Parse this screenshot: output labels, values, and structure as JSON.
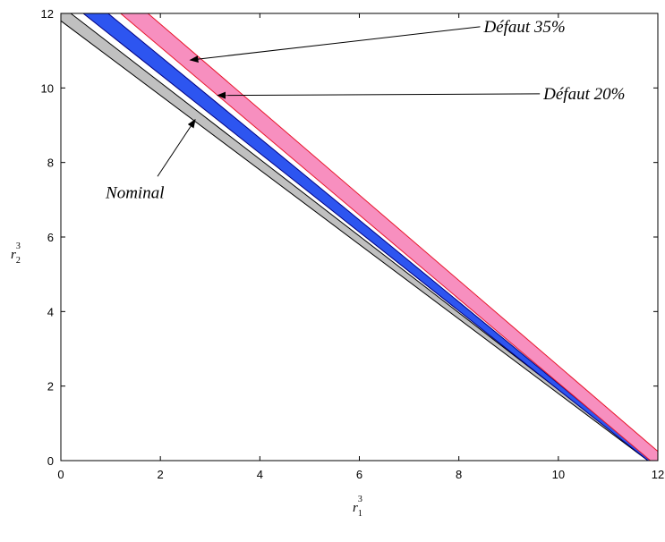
{
  "chart_data": {
    "type": "area",
    "title": "",
    "xlabel": {
      "base": "r",
      "sub": "1",
      "sup": "3"
    },
    "ylabel": {
      "base": "r",
      "sub": "2",
      "sup": "3"
    },
    "xlim": [
      0,
      12
    ],
    "ylim": [
      0,
      12
    ],
    "xticks": [
      "0",
      "2",
      "4",
      "6",
      "8",
      "10",
      "12"
    ],
    "yticks": [
      "0",
      "2",
      "4",
      "6",
      "8",
      "10",
      "12"
    ],
    "grid": false,
    "series": [
      {
        "name": "Nominal",
        "fill": "#c0c0c0",
        "stroke": "#000000",
        "points": [
          [
            0,
            12
          ],
          [
            0.2,
            12
          ],
          [
            11.85,
            0
          ],
          [
            11.8,
            0
          ],
          [
            0,
            11.8
          ]
        ]
      },
      {
        "name": "Défaut 20%",
        "fill": "#2d55f0",
        "stroke": "#000080",
        "points": [
          [
            0.45,
            12
          ],
          [
            0.95,
            12
          ],
          [
            11.88,
            0
          ],
          [
            11.8,
            0
          ]
        ]
      },
      {
        "name": "Défaut 35%",
        "fill": "#f78fbf",
        "stroke": "#e8142a",
        "points": [
          [
            1.2,
            12
          ],
          [
            1.75,
            12
          ],
          [
            12,
            0.25
          ],
          [
            12,
            0
          ],
          [
            11.85,
            0
          ]
        ]
      }
    ],
    "annotations": [
      {
        "text": "Défaut 35%",
        "text_at": [
          8.5,
          11.5
        ],
        "arrow_to": [
          2.6,
          10.75
        ]
      },
      {
        "text": "Défaut 20%",
        "text_at": [
          9.7,
          9.7
        ],
        "arrow_to": [
          3.15,
          9.8
        ]
      },
      {
        "text": "Nominal",
        "text_at": [
          0.9,
          7.05
        ],
        "arrow_to": [
          2.7,
          9.15
        ]
      }
    ]
  }
}
